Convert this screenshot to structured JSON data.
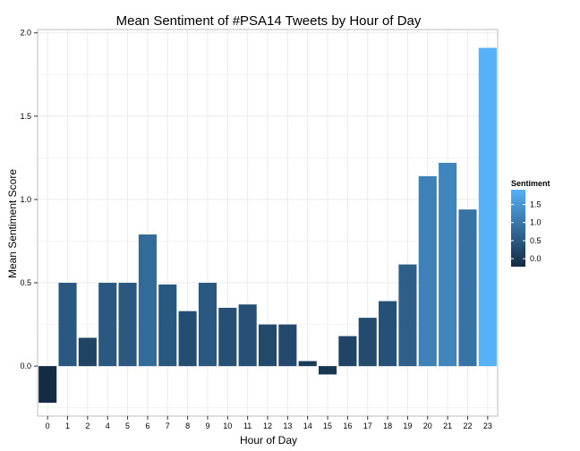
{
  "chart_data": {
    "type": "bar",
    "title": "Mean Sentiment of #PSA14 Tweets by Hour of Day",
    "xlabel": "Hour of Day",
    "ylabel": "Mean Sentiment Score",
    "categories": [
      "0",
      "1",
      "2",
      "4",
      "5",
      "6",
      "7",
      "8",
      "9",
      "10",
      "11",
      "12",
      "13",
      "14",
      "15",
      "16",
      "17",
      "18",
      "19",
      "20",
      "21",
      "22",
      "23"
    ],
    "values": [
      -0.22,
      0.5,
      0.17,
      0.5,
      0.5,
      0.79,
      0.49,
      0.33,
      0.5,
      0.35,
      0.37,
      0.25,
      0.25,
      0.03,
      -0.05,
      0.18,
      0.29,
      0.39,
      0.61,
      1.14,
      1.22,
      0.94,
      1.91
    ],
    "ylim": [
      -0.3,
      2.02
    ],
    "yticks": [
      0.0,
      0.5,
      1.0,
      1.5,
      2.0
    ],
    "ytick_labels": [
      "0.0",
      "0.5",
      "1.0",
      "1.5",
      "2.0"
    ],
    "grid": true,
    "legend": {
      "title": "Sentiment",
      "position": "right",
      "ticks": [
        0.0,
        0.5,
        1.0,
        1.5
      ],
      "tick_labels": [
        "0.0",
        "0.5",
        "1.0",
        "1.5"
      ],
      "range": [
        -0.22,
        1.91
      ],
      "low_color": "#132B43",
      "high_color": "#56B1F7"
    },
    "background_color": "#ffffff",
    "grid_color": "#ebebeb"
  }
}
